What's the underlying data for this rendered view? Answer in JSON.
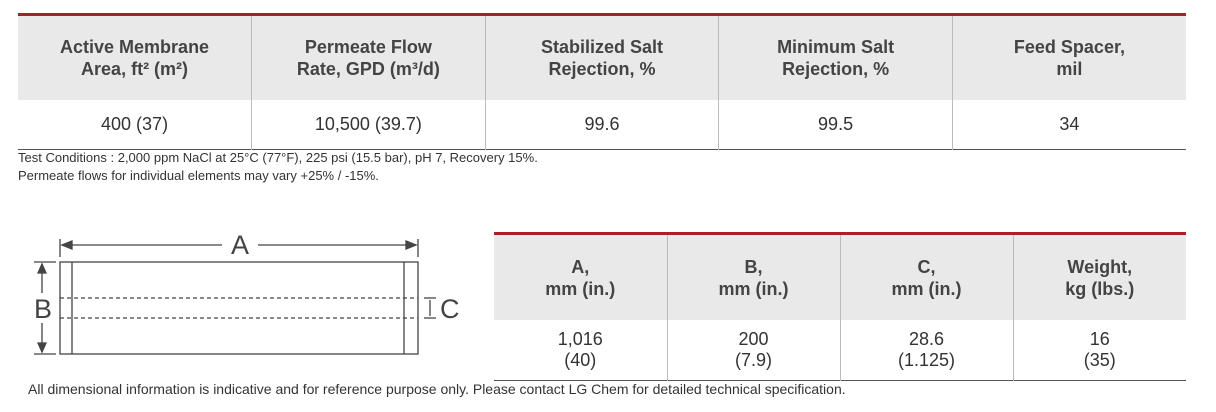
{
  "spec_table": {
    "headers": [
      [
        "Active Membrane",
        "Area, ft² (m²)"
      ],
      [
        "Permeate Flow",
        "Rate, GPD (m³/d)"
      ],
      [
        "Stabilized Salt",
        "Rejection, %"
      ],
      [
        "Minimum Salt",
        "Rejection, %"
      ],
      [
        "Feed Spacer,",
        "mil"
      ]
    ],
    "row": [
      "400 (37)",
      "10,500 (39.7)",
      "99.6",
      "99.5",
      "34"
    ]
  },
  "notes": [
    "Test Conditions : 2,000 ppm NaCl at 25°C (77°F), 225 psi (15.5 bar), pH 7, Recovery 15%.",
    "Permeate flows for individual elements may vary +25% / -15%."
  ],
  "diagram": {
    "labels": [
      "A",
      "B",
      "C"
    ]
  },
  "dim_table": {
    "headers": [
      [
        "A,",
        "mm (in.)"
      ],
      [
        "B,",
        "mm (in.)"
      ],
      [
        "C,",
        "mm (in.)"
      ],
      [
        "Weight,",
        "kg (lbs.)"
      ]
    ],
    "row": [
      [
        "1,016",
        "(40)"
      ],
      [
        "200",
        "(7.9)"
      ],
      [
        "28.6",
        "(1.125)"
      ],
      [
        "16",
        "(35)"
      ]
    ]
  },
  "footer": "All dimensional information is indicative and for reference purpose only. Please contact LG Chem for detailed technical specification."
}
